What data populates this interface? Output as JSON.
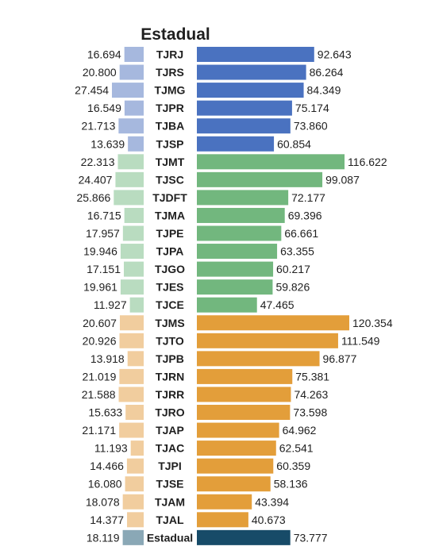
{
  "chart_data": {
    "type": "bar",
    "title": "Estadual",
    "xlabel": "",
    "ylabel": "",
    "grid": false,
    "legend": "none",
    "colors": {
      "group1_right": "#4a72c0",
      "group1_left": "#a6b8de",
      "group2_right": "#72b77e",
      "group2_left": "#b9dcc0",
      "group3_right": "#e39e3a",
      "group3_left": "#f1cd9e",
      "total_right": "#174b68",
      "total_left": "#8aa8b6"
    },
    "categories": [
      "TJRJ",
      "TJRS",
      "TJMG",
      "TJPR",
      "TJBA",
      "TJSP",
      "TJMT",
      "TJSC",
      "TJDFT",
      "TJMA",
      "TJPE",
      "TJPA",
      "TJGO",
      "TJES",
      "TJCE",
      "TJMS",
      "TJTO",
      "TJPB",
      "TJRN",
      "TJRR",
      "TJRO",
      "TJAP",
      "TJAC",
      "TJPI",
      "TJSE",
      "TJAM",
      "TJAL",
      "Estadual"
    ],
    "groups": [
      1,
      1,
      1,
      1,
      1,
      1,
      2,
      2,
      2,
      2,
      2,
      2,
      2,
      2,
      2,
      3,
      3,
      3,
      3,
      3,
      3,
      3,
      3,
      3,
      3,
      3,
      3,
      0
    ],
    "series": [
      {
        "values": [
          16694,
          20800,
          27454,
          16549,
          21713,
          13639,
          22313,
          24407,
          25866,
          16715,
          17957,
          19946,
          17151,
          19961,
          11927,
          20607,
          20926,
          13918,
          21019,
          21588,
          15633,
          21171,
          11193,
          14466,
          16080,
          18078,
          14377,
          18119
        ],
        "labels": [
          "16.694",
          "20.800",
          "27.454",
          "16.549",
          "21.713",
          "13.639",
          "22.313",
          "24.407",
          "25.866",
          "16.715",
          "17.957",
          "19.946",
          "17.151",
          "19.961",
          "11.927",
          "20.607",
          "20.926",
          "13.918",
          "21.019",
          "21.588",
          "15.633",
          "21.171",
          "11.193",
          "14.466",
          "16.080",
          "18.078",
          "14.377",
          "18.119"
        ]
      },
      {
        "values": [
          92643,
          86264,
          84349,
          75174,
          73860,
          60854,
          116622,
          99087,
          72177,
          69396,
          66661,
          63355,
          60217,
          59826,
          47465,
          120354,
          111549,
          96877,
          75381,
          74263,
          73598,
          64962,
          62541,
          60359,
          58136,
          43394,
          40673,
          73777
        ],
        "labels": [
          "92.643",
          "86.264",
          "84.349",
          "75.174",
          "73.860",
          "60.854",
          "116.622",
          "99.087",
          "72.177",
          "69.396",
          "66.661",
          "63.355",
          "60.217",
          "59.826",
          "47.465",
          "120.354",
          "111.549",
          "96.877",
          "75.381",
          "74.263",
          "73.598",
          "64.962",
          "62.541",
          "60.359",
          "58.136",
          "43.394",
          "40.673",
          "73.777"
        ]
      }
    ]
  }
}
